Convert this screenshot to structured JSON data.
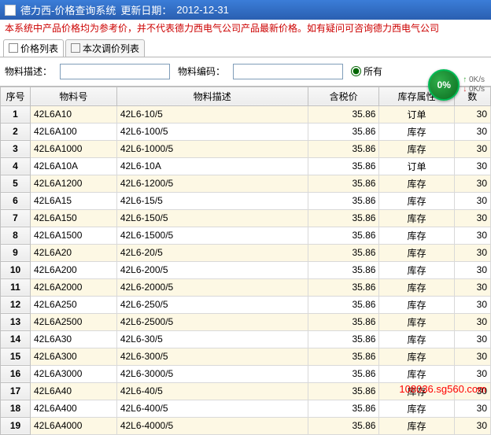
{
  "titlebar": {
    "app": "德力西-价格查询系统",
    "update_label": "更新日期：",
    "update_date": "2012-12-31"
  },
  "notice": "本系统中产品价格均为参考价，并不代表德力西电气公司产品最新价格。如有疑问可咨询德力西电气公司",
  "tabs": {
    "list": "价格列表",
    "adjust": "本次调价列表"
  },
  "filters": {
    "desc_label": "物料描述：",
    "desc_value": "",
    "code_label": "物料编码：",
    "code_value": "",
    "all_label": "所有"
  },
  "badge": {
    "pct": "0%",
    "up": "0K/s",
    "down": "0K/s"
  },
  "columns": {
    "seq": "序号",
    "code": "物料号",
    "desc": "物料描述",
    "price": "含税价",
    "attr": "库存属性",
    "qty": "数"
  },
  "rows": [
    {
      "seq": "1",
      "code": "42L6A10",
      "desc": "42L6-10/5",
      "price": "35.86",
      "attr": "订单",
      "qty": "30"
    },
    {
      "seq": "2",
      "code": "42L6A100",
      "desc": "42L6-100/5",
      "price": "35.86",
      "attr": "库存",
      "qty": "30"
    },
    {
      "seq": "3",
      "code": "42L6A1000",
      "desc": "42L6-1000/5",
      "price": "35.86",
      "attr": "库存",
      "qty": "30"
    },
    {
      "seq": "4",
      "code": "42L6A10A",
      "desc": "42L6-10A",
      "price": "35.86",
      "attr": "订单",
      "qty": "30"
    },
    {
      "seq": "5",
      "code": "42L6A1200",
      "desc": "42L6-1200/5",
      "price": "35.86",
      "attr": "库存",
      "qty": "30"
    },
    {
      "seq": "6",
      "code": "42L6A15",
      "desc": "42L6-15/5",
      "price": "35.86",
      "attr": "库存",
      "qty": "30"
    },
    {
      "seq": "7",
      "code": "42L6A150",
      "desc": "42L6-150/5",
      "price": "35.86",
      "attr": "库存",
      "qty": "30"
    },
    {
      "seq": "8",
      "code": "42L6A1500",
      "desc": "42L6-1500/5",
      "price": "35.86",
      "attr": "库存",
      "qty": "30"
    },
    {
      "seq": "9",
      "code": "42L6A20",
      "desc": "42L6-20/5",
      "price": "35.86",
      "attr": "库存",
      "qty": "30"
    },
    {
      "seq": "10",
      "code": "42L6A200",
      "desc": "42L6-200/5",
      "price": "35.86",
      "attr": "库存",
      "qty": "30"
    },
    {
      "seq": "11",
      "code": "42L6A2000",
      "desc": "42L6-2000/5",
      "price": "35.86",
      "attr": "库存",
      "qty": "30"
    },
    {
      "seq": "12",
      "code": "42L6A250",
      "desc": "42L6-250/5",
      "price": "35.86",
      "attr": "库存",
      "qty": "30"
    },
    {
      "seq": "13",
      "code": "42L6A2500",
      "desc": "42L6-2500/5",
      "price": "35.86",
      "attr": "库存",
      "qty": "30"
    },
    {
      "seq": "14",
      "code": "42L6A30",
      "desc": "42L6-30/5",
      "price": "35.86",
      "attr": "库存",
      "qty": "30"
    },
    {
      "seq": "15",
      "code": "42L6A300",
      "desc": "42L6-300/5",
      "price": "35.86",
      "attr": "库存",
      "qty": "30"
    },
    {
      "seq": "16",
      "code": "42L6A3000",
      "desc": "42L6-3000/5",
      "price": "35.86",
      "attr": "库存",
      "qty": "30"
    },
    {
      "seq": "17",
      "code": "42L6A40",
      "desc": "42L6-40/5",
      "price": "35.86",
      "attr": "库存",
      "qty": "30"
    },
    {
      "seq": "18",
      "code": "42L6A400",
      "desc": "42L6-400/5",
      "price": "35.86",
      "attr": "库存",
      "qty": "30"
    },
    {
      "seq": "19",
      "code": "42L6A4000",
      "desc": "42L6-4000/5",
      "price": "35.86",
      "attr": "库存",
      "qty": "30"
    }
  ],
  "watermark": "108036.sg560.com"
}
